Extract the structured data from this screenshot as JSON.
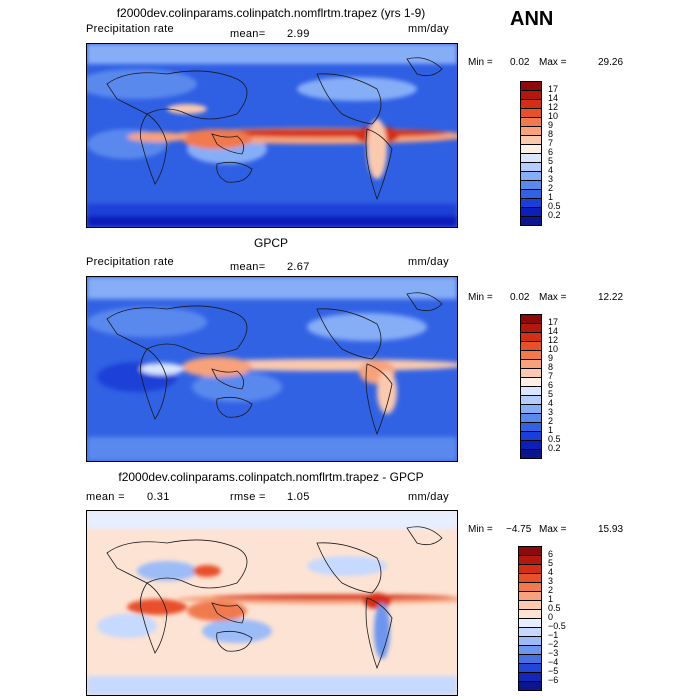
{
  "season": "ANN",
  "panels": [
    {
      "title": "f2000dev.colinparams.colinpatch.nomflrtm.trapez (yrs 1-9)",
      "left_label": "Precipitation rate",
      "stat1_label": "mean=",
      "stat1_value": "2.99",
      "units": "mm/day",
      "min_label": "Min =",
      "min_value": "0.02",
      "max_label": "Max =",
      "max_value": "29.26",
      "levels": [
        "17",
        "14",
        "12",
        "10",
        "9",
        "8",
        "7",
        "6",
        "5",
        "4",
        "3",
        "2",
        "1",
        "0.5",
        "0.2"
      ],
      "colors": [
        "#8c0a0a",
        "#b3180f",
        "#d42e15",
        "#e8502a",
        "#f07a4e",
        "#f7a27c",
        "#fbc9ad",
        "#fff0e6",
        "#d9e6ff",
        "#b3cdff",
        "#86aef7",
        "#5a89ee",
        "#3262e4",
        "#1a3fd8",
        "#0c1fb8",
        "#0a1590"
      ]
    },
    {
      "title": "GPCP",
      "left_label": "Precipitation rate",
      "stat1_label": "mean=",
      "stat1_value": "2.67",
      "units": "mm/day",
      "min_label": "Min =",
      "min_value": "0.02",
      "max_label": "Max =",
      "max_value": "12.22",
      "levels": [
        "17",
        "14",
        "12",
        "10",
        "9",
        "8",
        "7",
        "6",
        "5",
        "4",
        "3",
        "2",
        "1",
        "0.5",
        "0.2"
      ],
      "colors": [
        "#8c0a0a",
        "#b3180f",
        "#d42e15",
        "#e8502a",
        "#f07a4e",
        "#f7a27c",
        "#fbc9ad",
        "#fff0e6",
        "#d9e6ff",
        "#b3cdff",
        "#86aef7",
        "#5a89ee",
        "#3262e4",
        "#1a3fd8",
        "#0c1fb8",
        "#0a1590"
      ]
    },
    {
      "title": "f2000dev.colinparams.colinpatch.nomflrtm.trapez - GPCP",
      "stat1_label": "mean =",
      "stat1_value": "0.31",
      "stat2_label": "rmse =",
      "stat2_value": "1.05",
      "units": "mm/day",
      "min_label": "Min =",
      "min_value": "−4.75",
      "max_label": "Max =",
      "max_value": "15.93",
      "levels": [
        "6",
        "5",
        "4",
        "3",
        "2",
        "1",
        "0.5",
        "0",
        "−0.5",
        "−1",
        "−2",
        "−3",
        "−4",
        "−5",
        "−6"
      ],
      "colors": [
        "#8c0a0a",
        "#b3180f",
        "#d42e15",
        "#e8502a",
        "#f07a4e",
        "#f7a27c",
        "#fbc9ad",
        "#fde3d3",
        "#e6eeff",
        "#c6d9ff",
        "#9cbcf7",
        "#6e96ee",
        "#4670e2",
        "#2346d6",
        "#1226b8",
        "#0a1590"
      ]
    }
  ]
}
